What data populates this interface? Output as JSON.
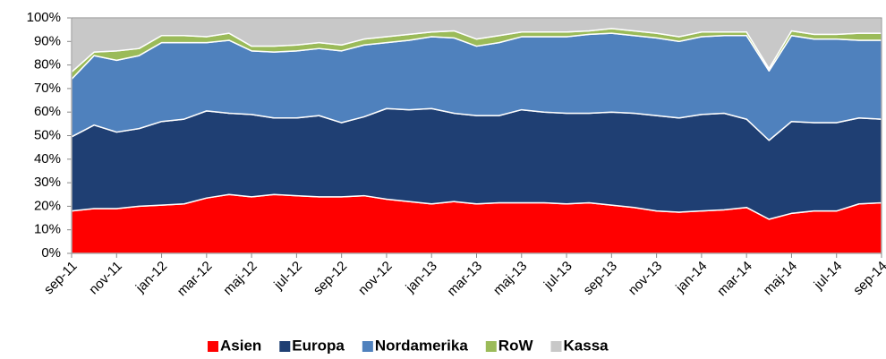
{
  "chart_data": {
    "type": "stacked_area",
    "categories": [
      "sep-11",
      null,
      "nov-11",
      null,
      "jan-12",
      null,
      "mar-12",
      null,
      "maj-12",
      null,
      "jul-12",
      null,
      "sep-12",
      null,
      "nov-12",
      null,
      "jan-13",
      null,
      "mar-13",
      null,
      "maj-13",
      null,
      "jul-13",
      null,
      "sep-13",
      null,
      "nov-13",
      null,
      "jan-14",
      null,
      "mar-14",
      null,
      "maj-14",
      null,
      "jul-14",
      null,
      "sep-14"
    ],
    "series": [
      {
        "name": "Asien",
        "color": "#ff0000",
        "values": [
          18,
          19,
          19,
          20,
          20.5,
          21,
          23.5,
          25,
          24,
          25,
          24.5,
          24,
          24,
          24.5,
          23,
          22,
          21,
          22,
          21,
          21.5,
          21.5,
          21.5,
          21,
          21.5,
          20.5,
          19.5,
          18,
          17.5,
          18,
          18.5,
          19.5,
          14.5,
          17,
          18,
          18,
          21,
          21.5
        ]
      },
      {
        "name": "Europa",
        "color": "#1f3f73",
        "values": [
          31.5,
          35.5,
          32.5,
          33,
          35.5,
          36,
          37,
          34.5,
          35,
          32.5,
          33,
          34.5,
          31.5,
          33.5,
          38.5,
          39,
          40.5,
          37.5,
          37.5,
          37,
          39.5,
          38.5,
          38.5,
          38,
          39.5,
          40,
          40.5,
          40,
          41,
          41,
          37.5,
          33.5,
          39,
          37.5,
          37.5,
          36.5,
          35.5
        ]
      },
      {
        "name": "Nordamerika",
        "color": "#4f81bd",
        "values": [
          24.5,
          29.5,
          30.5,
          31,
          33.5,
          32.5,
          29,
          31,
          27,
          28,
          28.5,
          28.5,
          30.5,
          30.5,
          28,
          29.5,
          30.5,
          32,
          29.5,
          31,
          31,
          32,
          32.5,
          33.5,
          33.5,
          33,
          33,
          32.5,
          33,
          33,
          35.5,
          29.5,
          36.5,
          35.5,
          35.5,
          33,
          33.5
        ]
      },
      {
        "name": "RoW",
        "color": "#9bbb59",
        "values": [
          3,
          1.5,
          4,
          3,
          3,
          3,
          2.5,
          3,
          2,
          2.5,
          2.5,
          2.5,
          2.5,
          2.5,
          2.5,
          2.5,
          2,
          3,
          3,
          3,
          2,
          2,
          2,
          1.5,
          2,
          2,
          2,
          2,
          2,
          1.5,
          1.5,
          1,
          2,
          2,
          2,
          3,
          3
        ]
      },
      {
        "name": "Kassa",
        "color": "#c8c8c8",
        "values": [
          23,
          14.5,
          14,
          13,
          7.5,
          7.5,
          8,
          6.5,
          12,
          12,
          11.5,
          10.5,
          11.5,
          9,
          8,
          7,
          6,
          5.5,
          9,
          7.5,
          6,
          6,
          6,
          5.5,
          4.5,
          5.5,
          6.5,
          8,
          6,
          6,
          6,
          21.5,
          5.5,
          7,
          7,
          6.5,
          6.5
        ]
      }
    ],
    "ylim": [
      0,
      100
    ],
    "yticks": [
      {
        "value": 0,
        "label": "0%"
      },
      {
        "value": 10,
        "label": "10%"
      },
      {
        "value": 20,
        "label": "20%"
      },
      {
        "value": 30,
        "label": "30%"
      },
      {
        "value": 40,
        "label": "40%"
      },
      {
        "value": 50,
        "label": "50%"
      },
      {
        "value": 60,
        "label": "60%"
      },
      {
        "value": 70,
        "label": "70%"
      },
      {
        "value": 80,
        "label": "80%"
      },
      {
        "value": 90,
        "label": "90%"
      },
      {
        "value": 100,
        "label": "100%"
      }
    ],
    "legend": "bottom"
  }
}
